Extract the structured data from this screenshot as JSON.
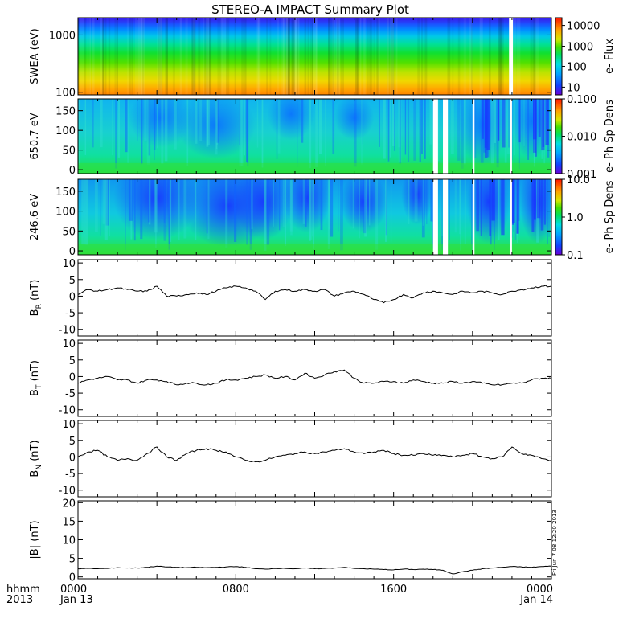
{
  "chart_data": {
    "type": "multi-panel time series",
    "title": "STEREO-A IMPACT Summary Plot",
    "x_axis": {
      "row1_label": "hhmm",
      "row2_label": "2013",
      "ticks": [
        {
          "hours": 0,
          "label": "0000",
          "date": "Jan 13"
        },
        {
          "hours": 8,
          "label": "0800",
          "date": ""
        },
        {
          "hours": 16,
          "label": "1600",
          "date": ""
        },
        {
          "hours": 24,
          "label": "0000",
          "date": "Jan 14"
        }
      ],
      "range_hours": [
        0,
        24
      ]
    },
    "stamp": "Fri Jun  7 08:12:20 2013",
    "spectrograms": [
      {
        "name": "swea",
        "ylabel": "SWEA (eV)",
        "yscale": "log",
        "ylim": [
          90,
          2000
        ],
        "yticks": [
          "100",
          "1000"
        ],
        "colorbar_label": "e- Flux",
        "colorbar_scale": "log",
        "colorbar_ticks": [
          "10",
          "100",
          "1000",
          "10000"
        ],
        "data_gaps_hours": [
          [
            21.85,
            22.05
          ]
        ]
      },
      {
        "name": "pad650",
        "ylabel": "650.7 eV",
        "yscale": "linear",
        "ylim": [
          -10,
          180
        ],
        "yticks": [
          "0",
          "50",
          "100",
          "150"
        ],
        "colorbar_label": "e- Ph Sp Dens",
        "colorbar_scale": "log",
        "colorbar_ticks": [
          "0.001",
          "0.010",
          "0.100"
        ],
        "data_gaps_hours": [
          [
            18.0,
            18.25
          ],
          [
            18.5,
            18.75
          ],
          [
            20.0,
            20.1
          ],
          [
            21.9,
            22.0
          ]
        ]
      },
      {
        "name": "pad246",
        "ylabel": "246.6 eV",
        "yscale": "linear",
        "ylim": [
          -10,
          180
        ],
        "yticks": [
          "0",
          "50",
          "100",
          "150"
        ],
        "colorbar_label": "e- Ph Sp Dens",
        "colorbar_scale": "log",
        "colorbar_ticks": [
          "0.1",
          "1.0",
          "10.0"
        ],
        "data_gaps_hours": [
          [
            18.0,
            18.25
          ],
          [
            18.5,
            18.75
          ],
          [
            20.0,
            20.1
          ],
          [
            21.9,
            22.0
          ]
        ]
      }
    ],
    "line_panels": [
      {
        "name": "br",
        "ylabel_main": "B",
        "ylabel_sub": "R",
        "ylabel_unit": " (nT)",
        "ylim": [
          -12,
          11
        ],
        "yticks": [
          "10",
          "5",
          "0",
          "-5",
          "-10"
        ],
        "x_hours": [
          0,
          0.5,
          1,
          1.5,
          2,
          2.5,
          3,
          3.5,
          4,
          4.5,
          5,
          5.5,
          6,
          6.5,
          7,
          7.5,
          8,
          8.5,
          9,
          9.5,
          10,
          10.5,
          11,
          11.5,
          12,
          12.5,
          13,
          13.5,
          14,
          14.5,
          15,
          15.5,
          16,
          16.5,
          17,
          17.5,
          18,
          18.5,
          19,
          19.5,
          20,
          20.5,
          21,
          21.5,
          22,
          22.5,
          23,
          23.5,
          24
        ],
        "values": [
          0.5,
          2,
          1.5,
          2,
          2.5,
          2,
          1.5,
          1.5,
          3,
          0,
          0,
          0.5,
          1,
          0.5,
          1.5,
          2.5,
          3,
          2.5,
          1.5,
          -1,
          1.5,
          2,
          1.5,
          2,
          1.5,
          2,
          0,
          1,
          1.5,
          0.5,
          -1,
          -2,
          -1,
          0.5,
          -0.5,
          1,
          1.5,
          1,
          0.5,
          1.5,
          1,
          1.5,
          1,
          0.5,
          1.5,
          2,
          2.5,
          3,
          3
        ]
      },
      {
        "name": "bt",
        "ylabel_main": "B",
        "ylabel_sub": "T",
        "ylabel_unit": " (nT)",
        "ylim": [
          -12,
          11
        ],
        "yticks": [
          "10",
          "5",
          "0",
          "-5",
          "-10"
        ],
        "x_hours": [
          0,
          0.5,
          1,
          1.5,
          2,
          2.5,
          3,
          3.5,
          4,
          4.5,
          5,
          5.5,
          6,
          6.5,
          7,
          7.5,
          8,
          8.5,
          9,
          9.5,
          10,
          10.5,
          11,
          11.5,
          12,
          12.5,
          13,
          13.5,
          14,
          14.5,
          15,
          15.5,
          16,
          16.5,
          17,
          17.5,
          18,
          18.5,
          19,
          19.5,
          20,
          20.5,
          21,
          21.5,
          22,
          22.5,
          23,
          23.5,
          24
        ],
        "values": [
          -2,
          -1,
          -0.5,
          0,
          -1,
          -1,
          -2,
          -1,
          -1,
          -1.5,
          -2.5,
          -2,
          -2,
          -2.5,
          -2,
          -1,
          -1,
          -0.5,
          0,
          0.5,
          -0.5,
          0,
          -1,
          1,
          -0.5,
          0.5,
          1.5,
          2,
          -0.5,
          -2,
          -2,
          -1.5,
          -1.5,
          -2,
          -1,
          -1.5,
          -2,
          -2,
          -1.5,
          -2,
          -1.5,
          -2,
          -2.5,
          -2.5,
          -2,
          -2,
          -1,
          -0.5,
          -0.5
        ]
      },
      {
        "name": "bn",
        "ylabel_main": "B",
        "ylabel_sub": "N",
        "ylabel_unit": " (nT)",
        "ylim": [
          -12,
          11
        ],
        "yticks": [
          "10",
          "5",
          "0",
          "-5",
          "-10"
        ],
        "x_hours": [
          0,
          0.5,
          1,
          1.5,
          2,
          2.5,
          3,
          3.5,
          4,
          4.5,
          5,
          5.5,
          6,
          6.5,
          7,
          7.5,
          8,
          8.5,
          9,
          9.5,
          10,
          10.5,
          11,
          11.5,
          12,
          12.5,
          13,
          13.5,
          14,
          14.5,
          15,
          15.5,
          16,
          16.5,
          17,
          17.5,
          18,
          18.5,
          19,
          19.5,
          20,
          20.5,
          21,
          21.5,
          22,
          22.5,
          23,
          23.5,
          24
        ],
        "values": [
          0,
          1.5,
          2,
          0,
          -1,
          -0.5,
          -1,
          1,
          3,
          0,
          -1,
          1,
          2,
          2.5,
          2,
          1.5,
          0,
          -1,
          -1.5,
          -1,
          0,
          0.5,
          1,
          1.5,
          1,
          1.5,
          2,
          2.5,
          1.5,
          1,
          1.5,
          2,
          1,
          0.5,
          0.5,
          1,
          0.5,
          0.5,
          0,
          0.5,
          1,
          0,
          -0.5,
          0,
          3,
          1,
          0.5,
          -0.5,
          -1
        ]
      },
      {
        "name": "bmag",
        "ylabel_main": "|B|",
        "ylabel_sub": "",
        "ylabel_unit": " (nT)",
        "ylim": [
          -0.5,
          20.5
        ],
        "yticks": [
          "20",
          "15",
          "10",
          "5",
          "0"
        ],
        "x_hours": [
          0,
          0.5,
          1,
          1.5,
          2,
          2.5,
          3,
          3.5,
          4,
          4.5,
          5,
          5.5,
          6,
          6.5,
          7,
          7.5,
          8,
          8.5,
          9,
          9.5,
          10,
          10.5,
          11,
          11.5,
          12,
          12.5,
          13,
          13.5,
          14,
          14.5,
          15,
          15.5,
          16,
          16.5,
          17,
          17.5,
          18,
          18.5,
          19,
          19.5,
          20,
          20.5,
          21,
          21.5,
          22,
          22.5,
          23,
          23.5,
          24
        ],
        "values": [
          2.2,
          2.3,
          2.2,
          2.3,
          2.5,
          2.4,
          2.4,
          2.6,
          2.9,
          2.7,
          2.6,
          2.5,
          2.6,
          2.5,
          2.6,
          2.7,
          2.8,
          2.6,
          2.2,
          2.1,
          2.3,
          2.3,
          2.2,
          2.4,
          2.2,
          2.3,
          2.4,
          2.6,
          2.3,
          2.2,
          2.1,
          2.0,
          1.9,
          2.1,
          2.0,
          2.1,
          2.0,
          1.8,
          0.8,
          1.4,
          1.8,
          2.2,
          2.4,
          2.6,
          2.8,
          2.7,
          2.6,
          2.8,
          2.9
        ]
      }
    ]
  }
}
